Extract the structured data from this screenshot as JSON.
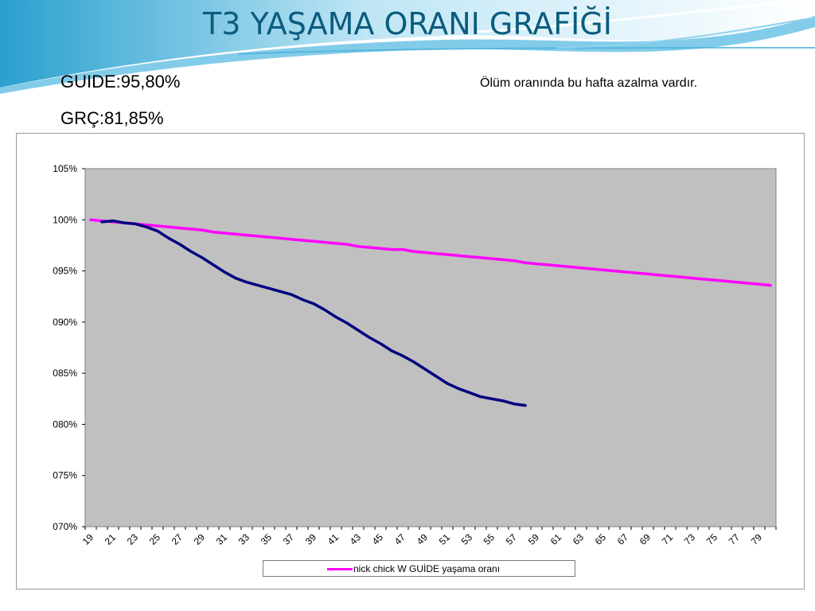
{
  "slide": {
    "title": "T3 YAŞAMA ORANI GRAFİĞİ",
    "guide_stat": "GUIDE:95,80%",
    "grc_stat": "GRÇ:81,85%",
    "note": "Ölüm oranında bu hafta azalma vardır."
  },
  "colors": {
    "title": "#0b5c7e",
    "plot_background": "#c0c0c0",
    "guide_line": "#ff00ff",
    "actual_line": "#000080"
  },
  "chart_data": {
    "type": "line",
    "title": "",
    "xlabel": "",
    "ylabel": "",
    "ylim": [
      70,
      105
    ],
    "y_ticks": [
      "070%",
      "075%",
      "080%",
      "085%",
      "090%",
      "095%",
      "100%",
      "105%"
    ],
    "y_tick_values": [
      70,
      75,
      80,
      85,
      90,
      95,
      100,
      105
    ],
    "x_range": [
      19,
      80
    ],
    "x_tick_labels": [
      "19",
      "21",
      "23",
      "25",
      "27",
      "29",
      "31",
      "33",
      "35",
      "37",
      "39",
      "41",
      "43",
      "45",
      "47",
      "49",
      "51",
      "53",
      "55",
      "57",
      "59",
      "61",
      "63",
      "65",
      "67",
      "69",
      "71",
      "73",
      "75",
      "77",
      "79"
    ],
    "grid": false,
    "legend_position": "bottom",
    "series": [
      {
        "name": "nick chick W GUİDE yaşama oranı",
        "color": "#ff00ff",
        "x": [
          19,
          20,
          21,
          22,
          23,
          24,
          25,
          26,
          27,
          28,
          29,
          30,
          31,
          32,
          33,
          34,
          35,
          36,
          37,
          38,
          39,
          40,
          41,
          42,
          43,
          44,
          45,
          46,
          47,
          48,
          49,
          50,
          51,
          52,
          53,
          54,
          55,
          56,
          57,
          58,
          59,
          60,
          61,
          62,
          63,
          64,
          65,
          66,
          67,
          68,
          69,
          70,
          71,
          72,
          73,
          74,
          75,
          76,
          77,
          78,
          79,
          80
        ],
        "values": [
          100.0,
          99.9,
          99.8,
          99.7,
          99.6,
          99.5,
          99.4,
          99.3,
          99.2,
          99.1,
          99.0,
          98.8,
          98.7,
          98.6,
          98.5,
          98.4,
          98.3,
          98.2,
          98.1,
          98.0,
          97.9,
          97.8,
          97.7,
          97.6,
          97.4,
          97.3,
          97.2,
          97.1,
          97.1,
          96.9,
          96.8,
          96.7,
          96.6,
          96.5,
          96.4,
          96.3,
          96.2,
          96.1,
          96.0,
          95.8,
          95.7,
          95.6,
          95.5,
          95.4,
          95.3,
          95.2,
          95.1,
          95.0,
          94.9,
          94.8,
          94.7,
          94.6,
          94.5,
          94.4,
          94.3,
          94.2,
          94.1,
          94.0,
          93.9,
          93.8,
          93.7,
          93.6
        ]
      },
      {
        "name": "",
        "color": "#000080",
        "x": [
          20,
          21,
          22,
          23,
          24,
          25,
          26,
          27,
          28,
          29,
          30,
          31,
          32,
          33,
          34,
          35,
          36,
          37,
          38,
          39,
          40,
          41,
          42,
          43,
          44,
          45,
          46,
          47,
          48,
          49,
          50,
          51,
          52,
          53,
          54,
          55,
          56,
          57,
          58
        ],
        "values": [
          99.8,
          99.9,
          99.7,
          99.6,
          99.3,
          98.9,
          98.2,
          97.6,
          96.9,
          96.3,
          95.6,
          94.9,
          94.3,
          93.9,
          93.6,
          93.3,
          93.0,
          92.7,
          92.2,
          91.8,
          91.2,
          90.5,
          89.9,
          89.2,
          88.5,
          87.9,
          87.2,
          86.7,
          86.1,
          85.4,
          84.7,
          84.0,
          83.5,
          83.1,
          82.7,
          82.5,
          82.3,
          82.0,
          81.85
        ]
      }
    ]
  }
}
